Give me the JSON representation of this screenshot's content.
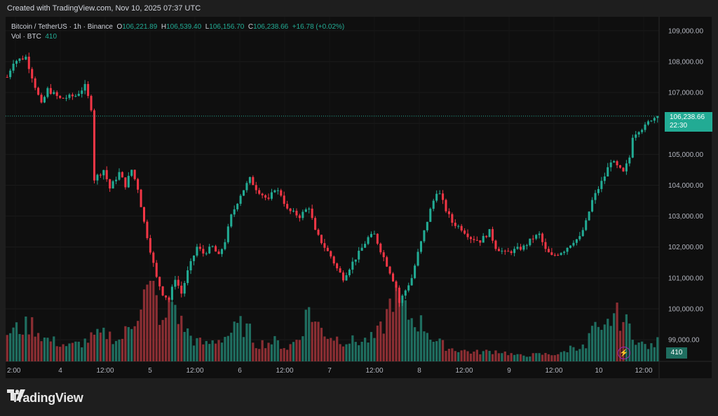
{
  "banner": "Created with TradingView.com, Nov 10, 2025 07:37 UTC",
  "legend": {
    "symbol": "Bitcoin / TetherUS · 1h · Binance",
    "o_label": "O",
    "o_value": "106,221.89",
    "h_label": "H",
    "h_value": "106,539.40",
    "l_label": "L",
    "l_value": "106,156.70",
    "c_label": "C",
    "c_value": "106,238.66",
    "change": "+16.78 (+0.02%)",
    "vol_label": "Vol · BTC",
    "vol_value": "410"
  },
  "price_tag": {
    "price": "106,238.66",
    "countdown": "22:30"
  },
  "volume_tag": "410",
  "brand": "TradingView",
  "colors": {
    "up": "#22ab94",
    "down": "#f23645",
    "up_vol": "#1f6e60",
    "down_vol": "#8b2e33",
    "background": "#0f0f0f"
  },
  "chart_data": {
    "type": "candlestick",
    "x_tick_labels": [
      "2:00",
      "4",
      "12:00",
      "5",
      "12:00",
      "6",
      "12:00",
      "7",
      "12:00",
      "8",
      "12:00",
      "9",
      "12:00",
      "10",
      "12:00"
    ],
    "y_tick_labels": [
      "99,000.00",
      "100,000.00",
      "101,000.00",
      "102,000.00",
      "103,000.00",
      "104,000.00",
      "105,000.00",
      "106,000.00",
      "107,000.00",
      "108,000.00",
      "109,000.00"
    ],
    "y_ticks": [
      99000,
      100000,
      101000,
      102000,
      103000,
      104000,
      105000,
      106000,
      107000,
      108000,
      109000
    ],
    "ylim": [
      98300,
      109450
    ],
    "interval": "1h",
    "last_price": 106238.66,
    "path_close": [
      [
        0,
        107500
      ],
      [
        2,
        108000
      ],
      [
        6,
        108150
      ],
      [
        9,
        107200
      ],
      [
        11,
        106600
      ],
      [
        13,
        107100
      ],
      [
        17,
        106800
      ],
      [
        22,
        106900
      ],
      [
        25,
        107200
      ],
      [
        27,
        106500
      ],
      [
        28,
        104200
      ],
      [
        31,
        104500
      ],
      [
        33,
        103900
      ],
      [
        36,
        104400
      ],
      [
        38,
        104000
      ],
      [
        40,
        104500
      ],
      [
        42,
        103900
      ],
      [
        44,
        102800
      ],
      [
        46,
        101900
      ],
      [
        48,
        101000
      ],
      [
        50,
        100500
      ],
      [
        52,
        100300
      ],
      [
        54,
        101000
      ],
      [
        56,
        100500
      ],
      [
        58,
        101200
      ],
      [
        61,
        102000
      ],
      [
        63,
        101800
      ],
      [
        66,
        102000
      ],
      [
        68,
        101700
      ],
      [
        70,
        102200
      ],
      [
        72,
        103000
      ],
      [
        75,
        103700
      ],
      [
        78,
        104200
      ],
      [
        80,
        103900
      ],
      [
        84,
        103500
      ],
      [
        86,
        103900
      ],
      [
        88,
        103700
      ],
      [
        90,
        103200
      ],
      [
        94,
        103000
      ],
      [
        97,
        103300
      ],
      [
        99,
        102500
      ],
      [
        102,
        102000
      ],
      [
        104,
        101700
      ],
      [
        106,
        101300
      ],
      [
        108,
        101000
      ],
      [
        111,
        101500
      ],
      [
        113,
        101800
      ],
      [
        116,
        102300
      ],
      [
        118,
        102400
      ],
      [
        120,
        101900
      ],
      [
        123,
        101200
      ],
      [
        125,
        100700
      ],
      [
        126,
        100200
      ],
      [
        128,
        100600
      ],
      [
        130,
        101000
      ],
      [
        132,
        101800
      ],
      [
        134,
        102500
      ],
      [
        136,
        103200
      ],
      [
        138,
        103800
      ],
      [
        139,
        103700
      ],
      [
        141,
        103200
      ],
      [
        143,
        102800
      ],
      [
        146,
        102600
      ],
      [
        149,
        102300
      ],
      [
        152,
        102200
      ],
      [
        155,
        102500
      ],
      [
        157,
        102000
      ],
      [
        160,
        101800
      ],
      [
        163,
        101900
      ],
      [
        166,
        102000
      ],
      [
        169,
        102300
      ],
      [
        171,
        102400
      ],
      [
        173,
        101900
      ],
      [
        175,
        101700
      ],
      [
        177,
        101800
      ],
      [
        179,
        101900
      ],
      [
        182,
        102200
      ],
      [
        184,
        102300
      ],
      [
        186,
        102800
      ],
      [
        188,
        103500
      ],
      [
        190,
        103900
      ],
      [
        192,
        104300
      ],
      [
        194,
        104800
      ],
      [
        196,
        104600
      ],
      [
        198,
        104400
      ],
      [
        200,
        104900
      ],
      [
        201,
        105600
      ],
      [
        203,
        105800
      ],
      [
        205,
        105900
      ],
      [
        207,
        106150
      ],
      [
        209,
        106238.66
      ]
    ],
    "volume_path_btc": [
      [
        0,
        610
      ],
      [
        8,
        780
      ],
      [
        12,
        480
      ],
      [
        20,
        320
      ],
      [
        24,
        390
      ],
      [
        28,
        520
      ],
      [
        32,
        580
      ],
      [
        36,
        440
      ],
      [
        40,
        780
      ],
      [
        44,
        1400
      ],
      [
        47,
        1520
      ],
      [
        50,
        720
      ],
      [
        53,
        1320
      ],
      [
        56,
        800
      ],
      [
        60,
        440
      ],
      [
        64,
        360
      ],
      [
        70,
        520
      ],
      [
        75,
        760
      ],
      [
        78,
        620
      ],
      [
        80,
        360
      ],
      [
        86,
        420
      ],
      [
        90,
        280
      ],
      [
        94,
        520
      ],
      [
        97,
        1150
      ],
      [
        99,
        820
      ],
      [
        103,
        560
      ],
      [
        108,
        440
      ],
      [
        114,
        420
      ],
      [
        118,
        500
      ],
      [
        121,
        760
      ],
      [
        124,
        1420
      ],
      [
        127,
        1100
      ],
      [
        130,
        900
      ],
      [
        134,
        760
      ],
      [
        137,
        460
      ],
      [
        142,
        280
      ],
      [
        150,
        190
      ],
      [
        158,
        220
      ],
      [
        164,
        120
      ],
      [
        172,
        150
      ],
      [
        178,
        160
      ],
      [
        182,
        330
      ],
      [
        186,
        280
      ],
      [
        188,
        720
      ],
      [
        191,
        540
      ],
      [
        195,
        1010
      ],
      [
        197,
        910
      ],
      [
        200,
        730
      ],
      [
        203,
        380
      ],
      [
        207,
        300
      ],
      [
        209,
        410
      ]
    ]
  }
}
